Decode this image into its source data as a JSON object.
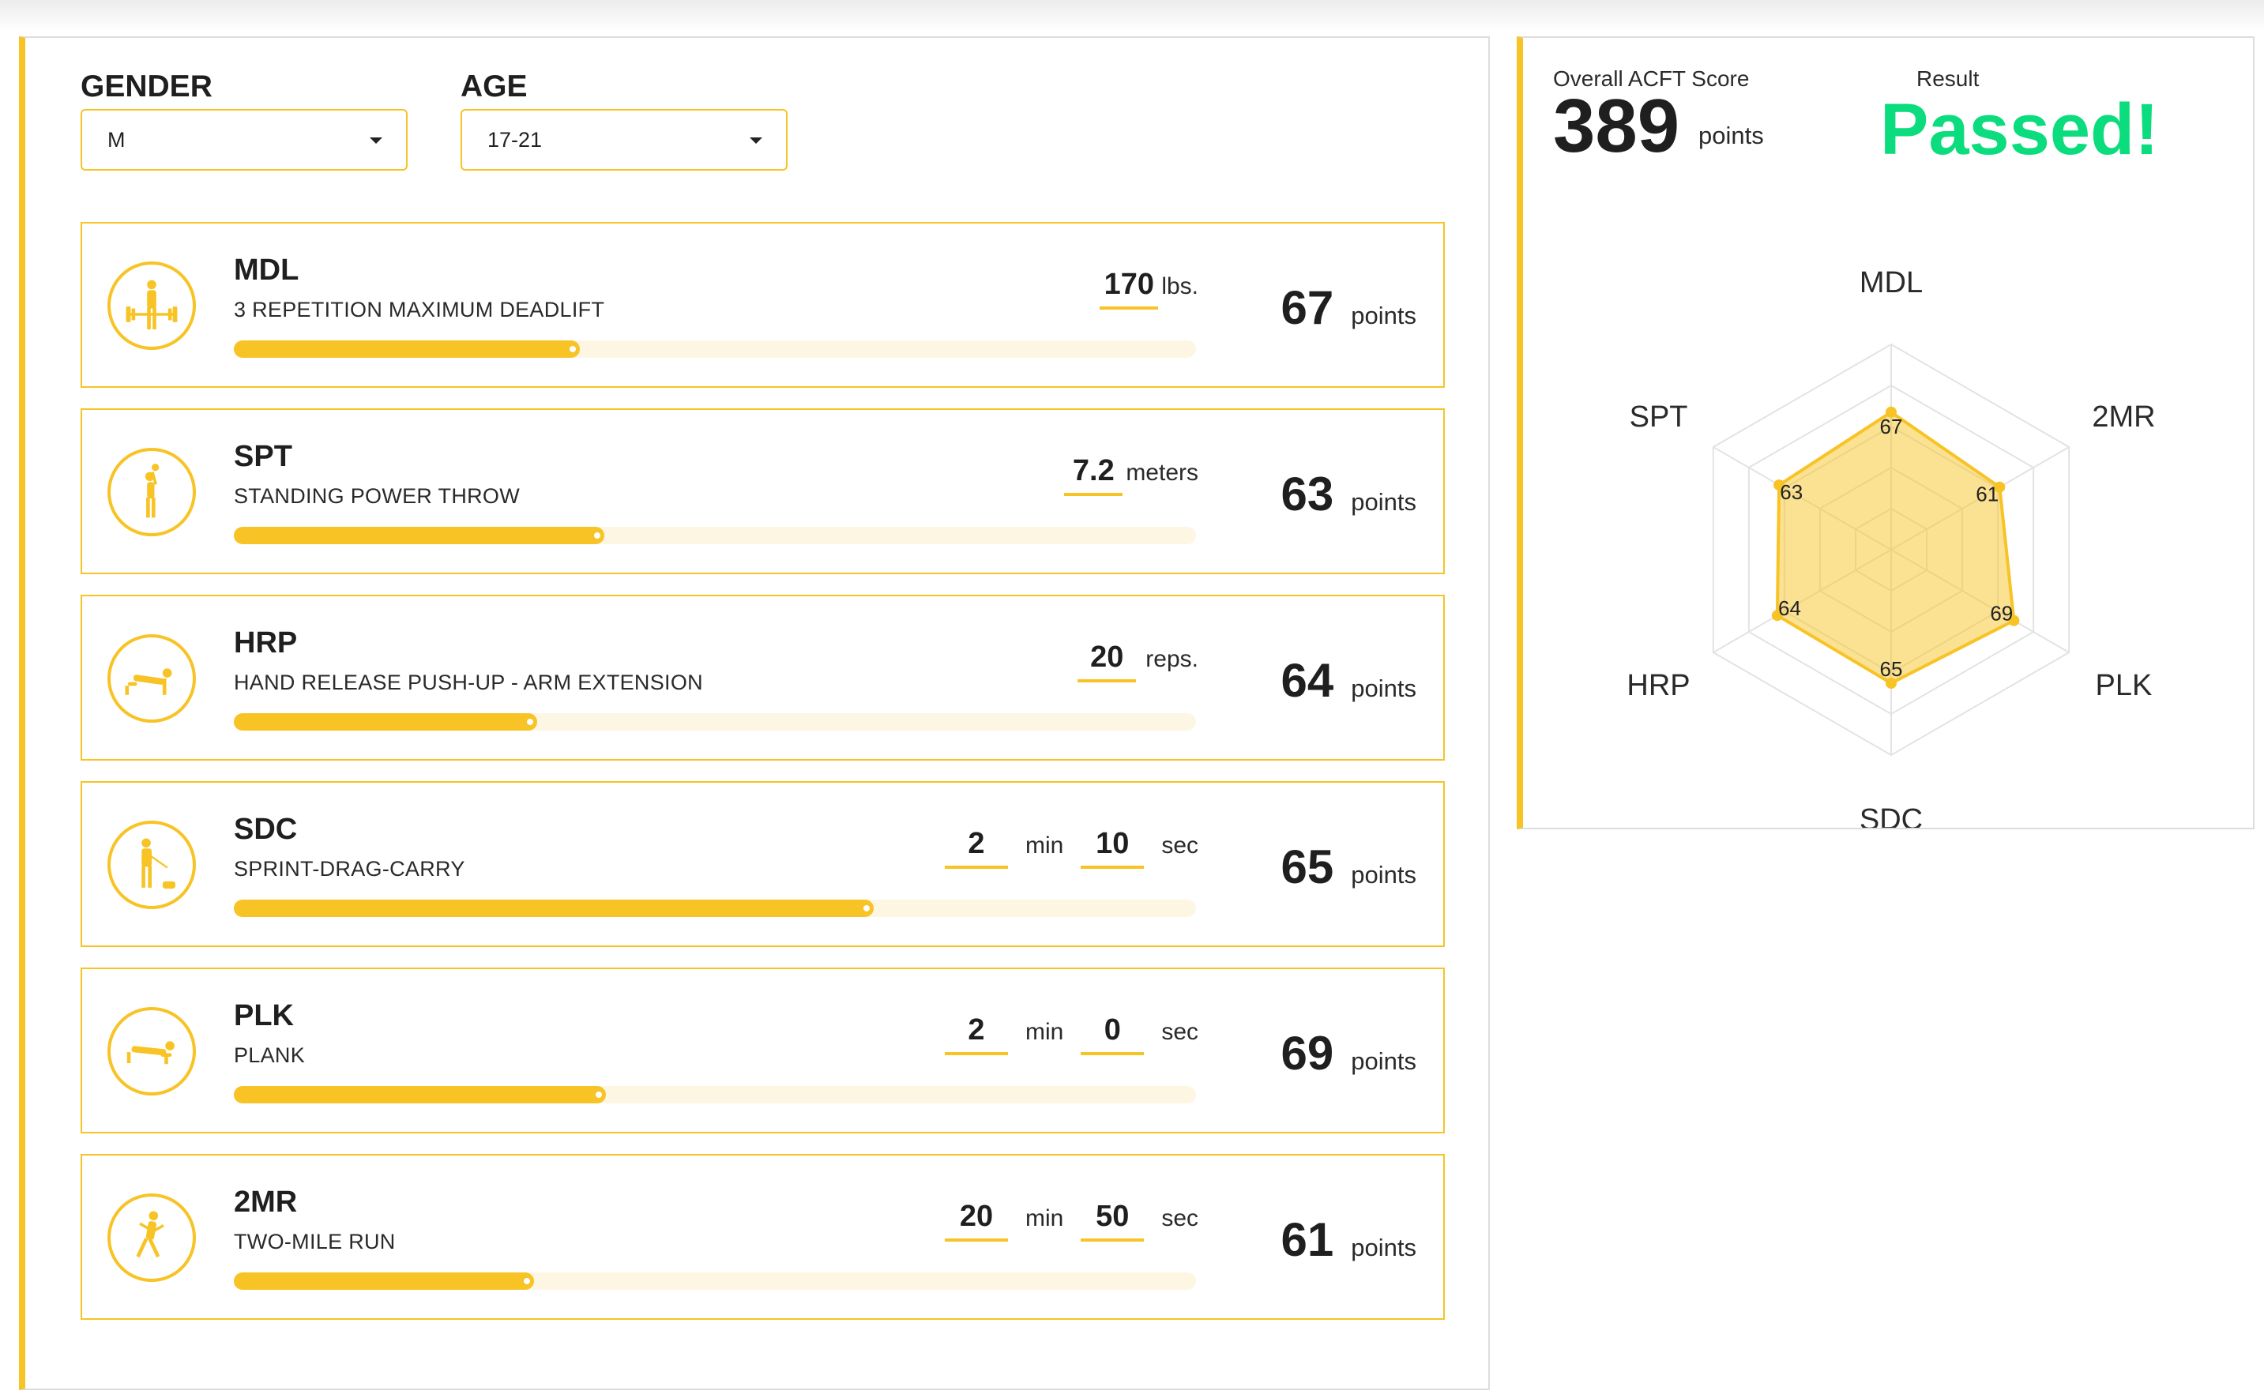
{
  "filters": {
    "gender": {
      "label": "GENDER",
      "value": "M"
    },
    "age": {
      "label": "AGE",
      "value": "17-21"
    }
  },
  "events": [
    {
      "code": "MDL",
      "name": "3 REPETITION MAXIMUM DEADLIFT",
      "icon": "deadlift-icon",
      "inputs": [
        {
          "value": "170",
          "unit": "lbs."
        }
      ],
      "points": "67",
      "points_label": "points",
      "progress": 0.36
    },
    {
      "code": "SPT",
      "name": "STANDING POWER THROW",
      "icon": "power-throw-icon",
      "inputs": [
        {
          "value": "7.2",
          "unit": "meters"
        }
      ],
      "points": "63",
      "points_label": "points",
      "progress": 0.385
    },
    {
      "code": "HRP",
      "name": "HAND RELEASE PUSH-UP - ARM EXTENSION",
      "icon": "push-up-icon",
      "inputs": [
        {
          "value": "20",
          "unit": "reps."
        }
      ],
      "points": "64",
      "points_label": "points",
      "progress": 0.315
    },
    {
      "code": "SDC",
      "name": "SPRINT-DRAG-CARRY",
      "icon": "sprint-drag-carry-icon",
      "inputs": [
        {
          "value": "2",
          "unit": "min"
        },
        {
          "value": "10",
          "unit": "sec"
        }
      ],
      "points": "65",
      "points_label": "points",
      "progress": 0.665
    },
    {
      "code": "PLK",
      "name": "PLANK",
      "icon": "plank-icon",
      "inputs": [
        {
          "value": "2",
          "unit": "min"
        },
        {
          "value": "0",
          "unit": "sec"
        }
      ],
      "points": "69",
      "points_label": "points",
      "progress": 0.387
    },
    {
      "code": "2MR",
      "name": "TWO-MILE RUN",
      "icon": "runner-icon",
      "inputs": [
        {
          "value": "20",
          "unit": "min"
        },
        {
          "value": "50",
          "unit": "sec"
        }
      ],
      "points": "61",
      "points_label": "points",
      "progress": 0.312
    }
  ],
  "summary": {
    "score_caption": "Overall ACFT Score",
    "score": "389",
    "score_unit": "points",
    "result_caption": "Result",
    "result": "Passed!"
  },
  "colors": {
    "accent": "#f7c325",
    "pass": "#0bdc7d",
    "text": "#1f1f1f"
  },
  "chart_data": {
    "type": "radar",
    "axes": [
      "MDL",
      "2MR",
      "PLK",
      "SDC",
      "HRP",
      "SPT"
    ],
    "values": [
      67,
      61,
      69,
      65,
      64,
      63
    ],
    "rmax": 100,
    "rings": 5,
    "fill_color": "#f7c325"
  }
}
